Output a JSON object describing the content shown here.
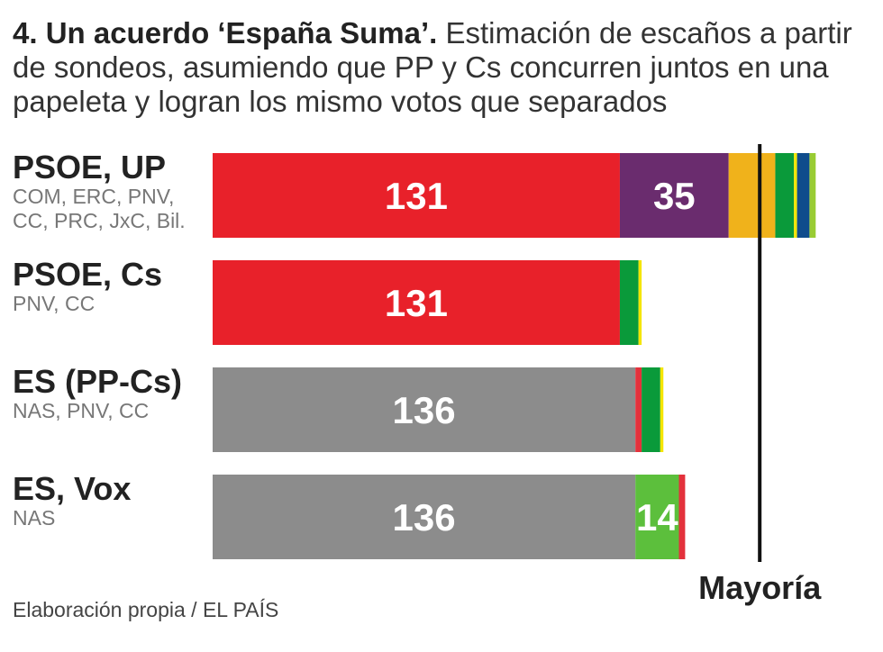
{
  "title": {
    "bold": "4. Un acuerdo ‘España Suma’.",
    "rest": " Estimación de escaños a partir de sondeos, asumiendo que PP y Cs concurren juntos en una papeleta y logran los mismo votos que separados"
  },
  "footer": "Elaboración propia / EL PAÍS",
  "colors": {
    "psoe": "#e8212a",
    "up": "#6a2c6e",
    "erc": "#f0b21b",
    "pnv": "#0a9a3a",
    "cc": "#f4e500",
    "jxc": "#0f4c8c",
    "bil": "#99cc33",
    "es": "#8c8c8c",
    "vox": "#5cbf3c",
    "nas": "#e3313b"
  },
  "chart_data": {
    "type": "bar",
    "stacked": true,
    "orientation": "horizontal",
    "majority": 176,
    "majority_label": "Mayoría",
    "rows": [
      {
        "label": "PSOE, UP",
        "sub": [
          "COM, ERC, PNV,",
          "CC, PRC, JxC, Bil."
        ],
        "segments": [
          {
            "value": 131,
            "color": "psoe",
            "label": "131"
          },
          {
            "value": 35,
            "color": "up",
            "label": "35"
          },
          {
            "value": 15,
            "color": "erc"
          },
          {
            "value": 6,
            "color": "pnv"
          },
          {
            "value": 1,
            "color": "cc"
          },
          {
            "value": 4,
            "color": "jxc"
          },
          {
            "value": 2,
            "color": "bil"
          }
        ]
      },
      {
        "label": "PSOE, Cs",
        "sub": [
          "PNV, CC"
        ],
        "segments": [
          {
            "value": 131,
            "color": "psoe",
            "label": "131"
          },
          {
            "value": 6,
            "color": "pnv"
          },
          {
            "value": 1,
            "color": "cc"
          }
        ]
      },
      {
        "label": "ES (PP-Cs)",
        "sub": [
          "NAS, PNV, CC"
        ],
        "segments": [
          {
            "value": 136,
            "color": "es",
            "label": "136"
          },
          {
            "value": 2,
            "color": "nas"
          },
          {
            "value": 6,
            "color": "pnv"
          },
          {
            "value": 1,
            "color": "cc"
          }
        ]
      },
      {
        "label": "ES, Vox",
        "sub": [
          "NAS"
        ],
        "segments": [
          {
            "value": 136,
            "color": "es",
            "label": "136"
          },
          {
            "value": 14,
            "color": "vox",
            "label": "14"
          },
          {
            "value": 2,
            "color": "nas"
          }
        ]
      }
    ]
  }
}
